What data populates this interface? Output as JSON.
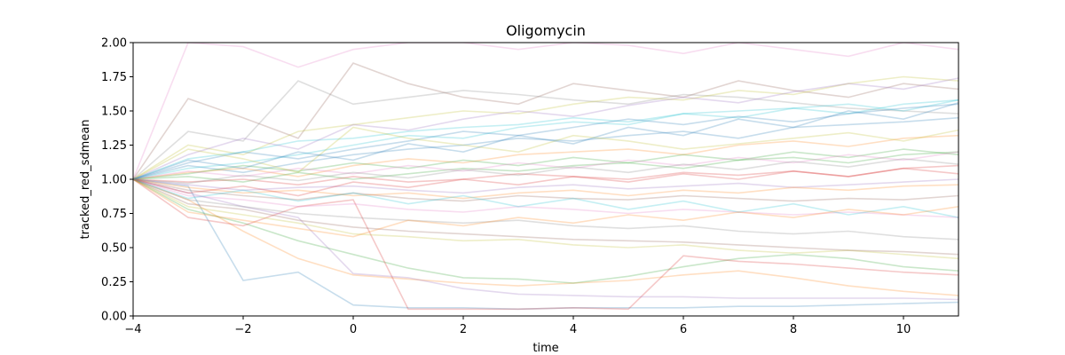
{
  "chart_data": {
    "type": "line",
    "title": "Oligomycin",
    "xlabel": "time",
    "ylabel": "tracked_red_sdmean",
    "xlim": [
      -4,
      11
    ],
    "ylim": [
      0.0,
      2.0
    ],
    "x_ticks": [
      -4,
      -2,
      0,
      2,
      4,
      6,
      8,
      10
    ],
    "x_tick_labels": [
      "−4",
      "−2",
      "0",
      "2",
      "4",
      "6",
      "8",
      "10"
    ],
    "y_ticks": [
      0.0,
      0.25,
      0.5,
      0.75,
      1.0,
      1.25,
      1.5,
      1.75,
      2.0
    ],
    "y_tick_labels": [
      "0.00",
      "0.25",
      "0.50",
      "0.75",
      "1.00",
      "1.25",
      "1.50",
      "1.75",
      "2.00"
    ],
    "grid": false,
    "legend": false,
    "line_alpha": 0.25,
    "palette": [
      "#1f77b4",
      "#ff7f0e",
      "#2ca02c",
      "#d62728",
      "#9467bd",
      "#8c564b",
      "#e377c2",
      "#7f7f7f",
      "#bcbd22",
      "#17becf"
    ],
    "x": [
      -4,
      -3,
      -2,
      -1,
      0,
      1,
      2,
      3,
      4,
      5,
      6,
      7,
      8,
      9,
      10,
      11
    ],
    "series": [
      {
        "values": [
          1.0,
          0.95,
          0.26,
          0.32,
          0.08,
          0.06,
          0.06,
          0.05,
          0.06,
          0.06,
          0.06,
          0.07,
          0.07,
          0.08,
          0.09,
          0.1
        ]
      },
      {
        "values": [
          1.0,
          0.85,
          0.62,
          0.42,
          0.3,
          0.27,
          0.24,
          0.22,
          0.24,
          0.26,
          0.3,
          0.33,
          0.28,
          0.22,
          0.18,
          0.15
        ]
      },
      {
        "values": [
          1.0,
          0.78,
          0.68,
          0.55,
          0.45,
          0.35,
          0.28,
          0.27,
          0.24,
          0.29,
          0.36,
          0.42,
          0.45,
          0.42,
          0.36,
          0.33
        ]
      },
      {
        "values": [
          1.0,
          0.72,
          0.66,
          0.8,
          0.85,
          0.05,
          0.05,
          0.05,
          0.06,
          0.05,
          0.44,
          0.4,
          0.38,
          0.35,
          0.32,
          0.3
        ]
      },
      {
        "values": [
          1.0,
          0.9,
          0.8,
          0.72,
          0.31,
          0.28,
          0.2,
          0.16,
          0.15,
          0.14,
          0.14,
          0.13,
          0.13,
          0.13,
          0.13,
          0.12
        ]
      },
      {
        "values": [
          1.0,
          1.59,
          1.45,
          1.3,
          1.85,
          1.7,
          1.6,
          1.55,
          1.7,
          1.65,
          1.6,
          1.72,
          1.65,
          1.6,
          1.7,
          1.66
        ]
      },
      {
        "values": [
          1.0,
          2.0,
          1.97,
          1.82,
          1.95,
          2.0,
          2.0,
          1.95,
          2.0,
          1.98,
          1.92,
          2.0,
          1.95,
          1.9,
          2.0,
          1.95
        ]
      },
      {
        "values": [
          1.0,
          1.35,
          1.28,
          1.72,
          1.55,
          1.6,
          1.65,
          1.62,
          1.58,
          1.55,
          1.62,
          1.6,
          1.56,
          1.52,
          1.5,
          1.48
        ]
      },
      {
        "values": [
          1.0,
          1.25,
          1.18,
          1.35,
          1.4,
          1.45,
          1.5,
          1.48,
          1.55,
          1.6,
          1.58,
          1.65,
          1.62,
          1.7,
          1.75,
          1.72
        ]
      },
      {
        "values": [
          1.0,
          1.15,
          1.2,
          1.28,
          1.3,
          1.35,
          1.38,
          1.4,
          1.45,
          1.42,
          1.48,
          1.5,
          1.52,
          1.48,
          1.55,
          1.58
        ]
      },
      {
        "values": [
          1.0,
          1.1,
          1.05,
          1.12,
          1.18,
          1.22,
          1.25,
          1.3,
          1.28,
          1.32,
          1.35,
          1.3,
          1.38,
          1.4,
          1.42,
          1.45
        ]
      },
      {
        "values": [
          1.0,
          1.05,
          1.08,
          1.02,
          1.1,
          1.15,
          1.12,
          1.18,
          1.2,
          1.22,
          1.18,
          1.25,
          1.28,
          1.24,
          1.3,
          1.32
        ]
      },
      {
        "values": [
          1.0,
          1.02,
          0.98,
          1.05,
          1.0,
          1.04,
          1.08,
          1.06,
          1.1,
          1.12,
          1.08,
          1.14,
          1.16,
          1.12,
          1.18,
          1.2
        ]
      },
      {
        "values": [
          1.0,
          0.98,
          1.0,
          0.96,
          1.02,
          0.98,
          1.0,
          1.04,
          1.02,
          1.0,
          1.05,
          1.03,
          1.06,
          1.02,
          1.08,
          1.1
        ]
      },
      {
        "values": [
          1.0,
          0.96,
          0.92,
          0.94,
          0.95,
          0.92,
          0.9,
          0.94,
          0.96,
          0.93,
          0.95,
          0.97,
          0.94,
          0.96,
          0.98,
          1.0
        ]
      },
      {
        "values": [
          1.0,
          0.92,
          0.88,
          0.85,
          0.9,
          0.86,
          0.84,
          0.88,
          0.86,
          0.85,
          0.88,
          0.86,
          0.84,
          0.86,
          0.85,
          0.88
        ]
      },
      {
        "values": [
          1.0,
          0.88,
          0.85,
          0.8,
          0.82,
          0.78,
          0.76,
          0.8,
          0.78,
          0.75,
          0.78,
          0.76,
          0.74,
          0.76,
          0.74,
          0.72
        ]
      },
      {
        "values": [
          1.0,
          0.85,
          0.8,
          0.75,
          0.72,
          0.7,
          0.68,
          0.7,
          0.66,
          0.64,
          0.66,
          0.62,
          0.6,
          0.62,
          0.58,
          0.56
        ]
      },
      {
        "values": [
          1.0,
          0.8,
          0.74,
          0.68,
          0.6,
          0.58,
          0.55,
          0.56,
          0.52,
          0.5,
          0.52,
          0.48,
          0.46,
          0.48,
          0.45,
          0.42
        ]
      },
      {
        "values": [
          1.0,
          1.08,
          1.12,
          1.18,
          1.25,
          1.32,
          1.3,
          1.38,
          1.42,
          1.4,
          1.48,
          1.45,
          1.52,
          1.55,
          1.5,
          1.58
        ]
      },
      {
        "values": [
          1.0,
          1.12,
          1.2,
          1.15,
          1.22,
          1.28,
          1.35,
          1.32,
          1.38,
          1.44,
          1.4,
          1.46,
          1.42,
          1.48,
          1.52,
          1.55
        ]
      },
      {
        "values": [
          1.0,
          0.94,
          0.9,
          0.92,
          0.88,
          0.9,
          0.86,
          0.9,
          0.92,
          0.88,
          0.92,
          0.9,
          0.94,
          0.92,
          0.95,
          0.96
        ]
      },
      {
        "values": [
          1.0,
          1.04,
          1.1,
          1.06,
          1.12,
          1.08,
          1.14,
          1.1,
          1.16,
          1.12,
          1.18,
          1.14,
          1.2,
          1.16,
          1.22,
          1.18
        ]
      },
      {
        "values": [
          1.0,
          0.9,
          0.95,
          0.88,
          0.98,
          0.94,
          1.0,
          0.96,
          1.02,
          0.98,
          1.04,
          1.0,
          1.06,
          1.02,
          1.08,
          1.04
        ]
      },
      {
        "values": [
          1.0,
          1.18,
          1.3,
          1.22,
          1.4,
          1.36,
          1.44,
          1.5,
          1.46,
          1.54,
          1.6,
          1.56,
          1.64,
          1.7,
          1.66,
          1.74
        ]
      },
      {
        "values": [
          1.0,
          0.82,
          0.78,
          0.7,
          0.65,
          0.62,
          0.6,
          0.58,
          0.56,
          0.55,
          0.54,
          0.52,
          0.5,
          0.48,
          0.47,
          0.45
        ]
      },
      {
        "values": [
          1.0,
          1.06,
          1.02,
          1.08,
          1.04,
          1.1,
          1.06,
          1.12,
          1.08,
          1.14,
          1.1,
          1.16,
          1.12,
          1.18,
          1.14,
          1.2
        ]
      },
      {
        "values": [
          1.0,
          0.97,
          1.03,
          0.99,
          1.05,
          1.01,
          1.07,
          1.03,
          1.09,
          1.05,
          1.11,
          1.07,
          1.13,
          1.09,
          1.15,
          1.11
        ]
      },
      {
        "values": [
          1.0,
          1.22,
          1.15,
          1.05,
          1.38,
          1.3,
          1.25,
          1.2,
          1.32,
          1.28,
          1.22,
          1.26,
          1.3,
          1.34,
          1.28,
          1.36
        ]
      },
      {
        "values": [
          1.0,
          0.86,
          0.92,
          0.84,
          0.9,
          0.82,
          0.88,
          0.8,
          0.86,
          0.78,
          0.84,
          0.76,
          0.82,
          0.74,
          0.8,
          0.72
        ]
      },
      {
        "values": [
          1.0,
          1.14,
          1.08,
          1.2,
          1.14,
          1.26,
          1.2,
          1.32,
          1.26,
          1.38,
          1.32,
          1.44,
          1.38,
          1.5,
          1.44,
          1.56
        ]
      },
      {
        "values": [
          1.0,
          0.76,
          0.7,
          0.64,
          0.58,
          0.7,
          0.66,
          0.72,
          0.68,
          0.74,
          0.7,
          0.76,
          0.72,
          0.78,
          0.74,
          0.8
        ]
      }
    ]
  }
}
